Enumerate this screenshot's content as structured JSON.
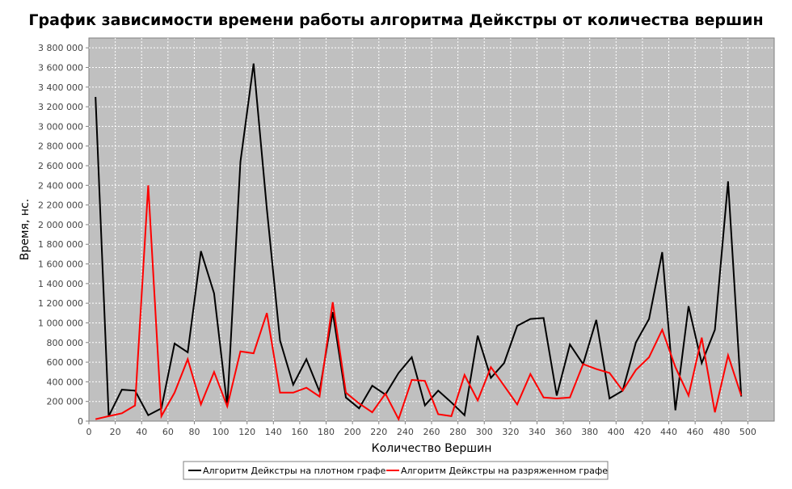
{
  "chart_data": {
    "type": "line",
    "title": "График зависимости времени работы алгоритма Дейкстры от количества вершин",
    "xlabel": "Количество Вершин",
    "ylabel": "Время, нс.",
    "xlim": [
      0,
      520
    ],
    "ylim": [
      0,
      3900000
    ],
    "x_ticks": [
      0,
      20,
      40,
      60,
      80,
      100,
      120,
      140,
      160,
      180,
      200,
      220,
      240,
      260,
      280,
      300,
      320,
      340,
      360,
      380,
      400,
      420,
      440,
      460,
      480,
      500
    ],
    "x_tick_labels": [
      "0",
      "20",
      "40",
      "60",
      "80",
      "100",
      "120",
      "140",
      "160",
      "180",
      "200",
      "220",
      "240",
      "260",
      "280",
      "300",
      "320",
      "340",
      "360",
      "380",
      "400",
      "420",
      "440",
      "460",
      "480",
      "500"
    ],
    "y_ticks": [
      0,
      200000,
      400000,
      600000,
      800000,
      1000000,
      1200000,
      1400000,
      1600000,
      1800000,
      2000000,
      2200000,
      2400000,
      2600000,
      2800000,
      3000000,
      3200000,
      3400000,
      3600000,
      3800000
    ],
    "y_tick_labels": [
      "0",
      "200 000",
      "400 000",
      "600 000",
      "800 000",
      "1 000 000",
      "1 200 000",
      "1 400 000",
      "1 600 000",
      "1 800 000",
      "2 000 000",
      "2 200 000",
      "2 400 000",
      "2 600 000",
      "2 800 000",
      "3 000 000",
      "3 200 000",
      "3 400 000",
      "3 600 000",
      "3 800 000"
    ],
    "grid": true,
    "legend_position": "bottom-center",
    "x": [
      5,
      15,
      25,
      35,
      45,
      55,
      65,
      75,
      85,
      95,
      105,
      115,
      125,
      135,
      145,
      155,
      165,
      175,
      185,
      195,
      205,
      215,
      225,
      235,
      245,
      255,
      265,
      275,
      285,
      295,
      305,
      315,
      325,
      335,
      345,
      355,
      365,
      375,
      385,
      395,
      405,
      415,
      425,
      435,
      445,
      455,
      465,
      475,
      485,
      495
    ],
    "series": [
      {
        "name": "Алгоритм Дейкстры на плотном графе",
        "color": "#000000",
        "values": [
          3300000,
          50000,
          320000,
          310000,
          60000,
          130000,
          790000,
          700000,
          1730000,
          1300000,
          150000,
          2640000,
          3640000,
          2160000,
          820000,
          370000,
          630000,
          300000,
          1110000,
          240000,
          130000,
          360000,
          270000,
          490000,
          650000,
          160000,
          310000,
          190000,
          60000,
          870000,
          440000,
          590000,
          970000,
          1040000,
          1050000,
          260000,
          780000,
          580000,
          1030000,
          230000,
          310000,
          800000,
          1040000,
          1720000,
          110000,
          1170000,
          590000,
          930000,
          2440000,
          250000
        ]
      },
      {
        "name": "Алгоритм Дейкстры на разряженном графе",
        "color": "#ff0000",
        "values": [
          20000,
          50000,
          80000,
          160000,
          2400000,
          50000,
          290000,
          630000,
          170000,
          500000,
          150000,
          710000,
          690000,
          1100000,
          290000,
          290000,
          340000,
          250000,
          1210000,
          290000,
          180000,
          90000,
          280000,
          20000,
          420000,
          410000,
          70000,
          50000,
          470000,
          210000,
          550000,
          360000,
          170000,
          480000,
          240000,
          230000,
          240000,
          580000,
          530000,
          490000,
          310000,
          520000,
          650000,
          930000,
          550000,
          260000,
          850000,
          90000,
          670000,
          260000
        ]
      }
    ]
  }
}
